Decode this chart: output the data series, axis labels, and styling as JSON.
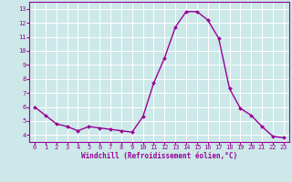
{
  "x": [
    0,
    1,
    2,
    3,
    4,
    5,
    6,
    7,
    8,
    9,
    10,
    11,
    12,
    13,
    14,
    15,
    16,
    17,
    18,
    19,
    20,
    21,
    22,
    23
  ],
  "y": [
    6.0,
    5.4,
    4.8,
    4.6,
    4.3,
    4.6,
    4.5,
    4.4,
    4.3,
    4.2,
    5.3,
    7.7,
    9.5,
    11.7,
    12.8,
    12.8,
    12.2,
    10.9,
    7.3,
    5.9,
    5.4,
    4.6,
    3.9,
    3.8
  ],
  "line_color": "#990099",
  "marker": "D",
  "marker_size": 2.0,
  "bg_color": "#cce8e8",
  "grid_color": "#ffffff",
  "xlabel": "Windchill (Refroidissement éolien,°C)",
  "xlabel_color": "#990099",
  "tick_color": "#990099",
  "ylim": [
    3.5,
    13.5
  ],
  "xlim": [
    -0.5,
    23.5
  ],
  "yticks": [
    4,
    5,
    6,
    7,
    8,
    9,
    10,
    11,
    12,
    13
  ],
  "xticks": [
    0,
    1,
    2,
    3,
    4,
    5,
    6,
    7,
    8,
    9,
    10,
    11,
    12,
    13,
    14,
    15,
    16,
    17,
    18,
    19,
    20,
    21,
    22,
    23
  ],
  "line_width": 1.0,
  "tick_fontsize": 5.0,
  "xlabel_fontsize": 5.5,
  "spine_color": "#990099"
}
